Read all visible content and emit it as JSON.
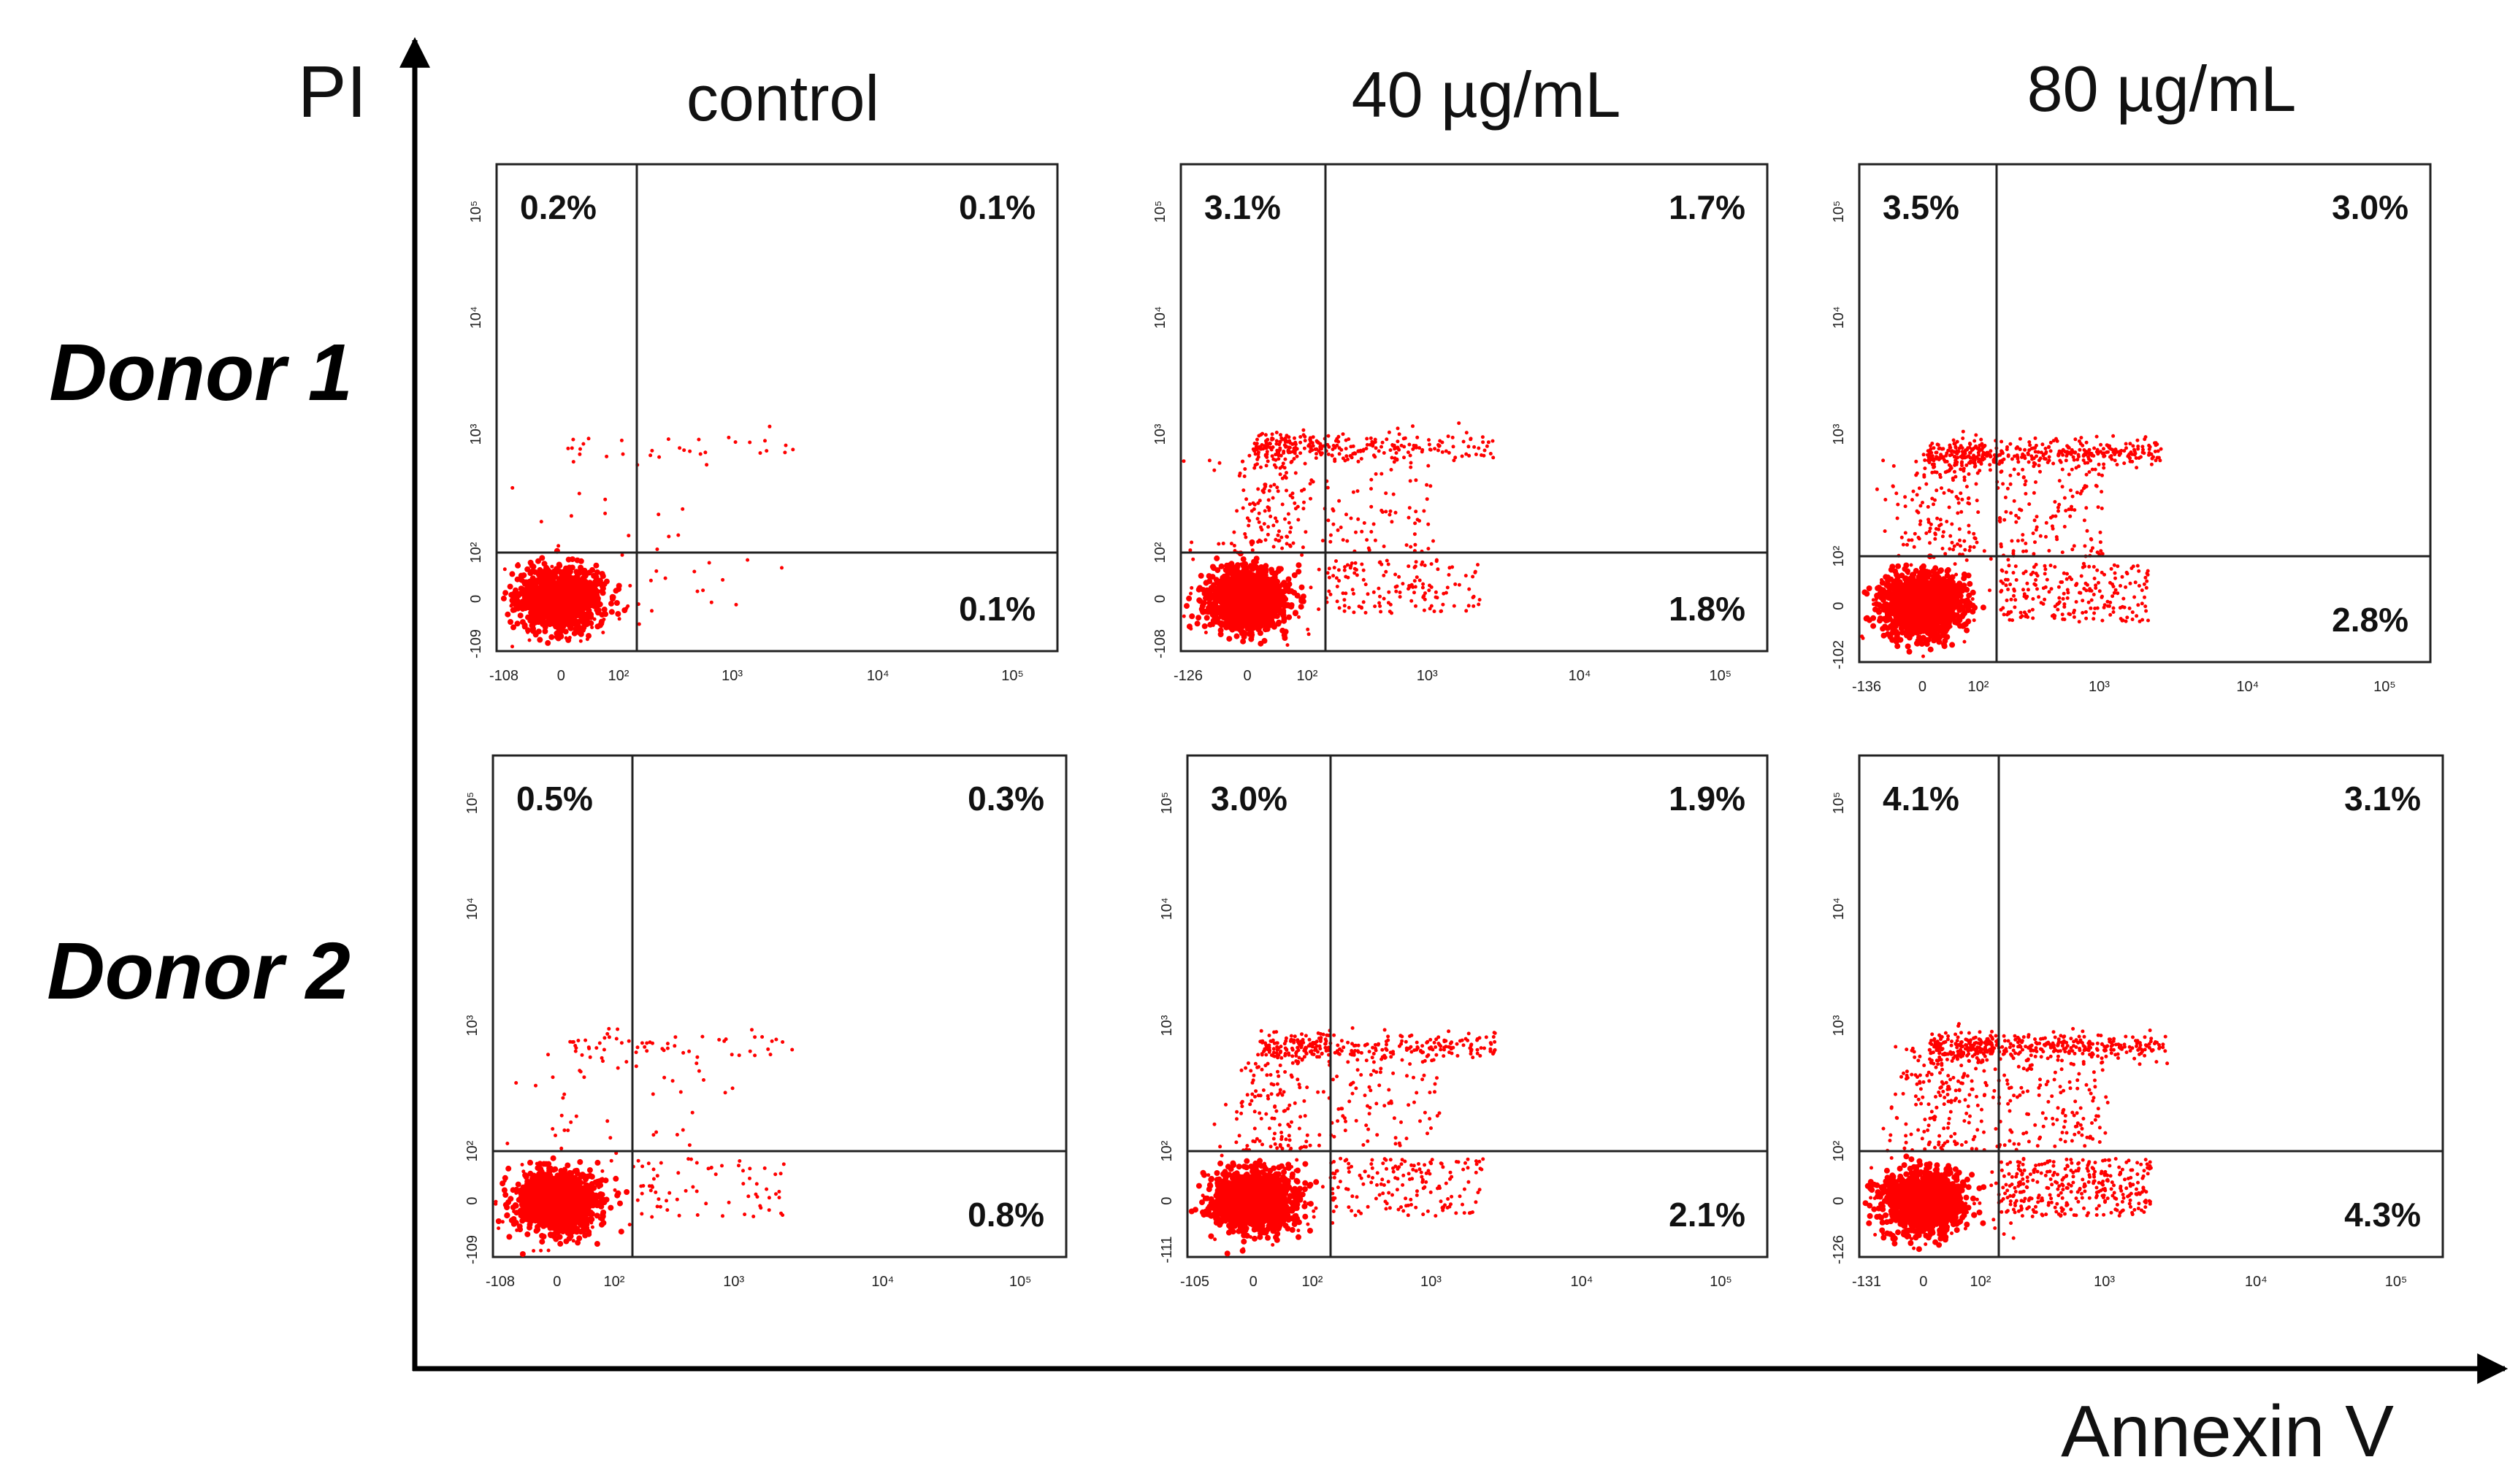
{
  "axes": {
    "y_label": "PI",
    "x_label": "Annexin V"
  },
  "columns": [
    "control",
    "40 µg/mL",
    "80 µg/mL"
  ],
  "rows": [
    "Donor 1",
    "Donor 2"
  ],
  "colors": {
    "dots": "#ff0000",
    "axis": "#000000",
    "frame": "#222222"
  },
  "chart_data": {
    "type": "scatter",
    "title": "",
    "xlabel": "Annexin V",
    "ylabel": "PI",
    "scale": "biexponential (log)",
    "tick_labels": {
      "zero": "0",
      "decades": [
        "10²",
        "10³",
        "10⁴",
        "10⁵"
      ]
    },
    "panels": [
      {
        "row": "Donor 1",
        "column": "control",
        "x_min": "-108",
        "y_min": "-109",
        "quadrants": {
          "upper_left": "0.2%",
          "upper_right": "0.1%",
          "lower_right": "0.1%"
        }
      },
      {
        "row": "Donor 1",
        "column": "40 µg/mL",
        "x_min": "-126",
        "y_min": "-108",
        "quadrants": {
          "upper_left": "3.1%",
          "upper_right": "1.7%",
          "lower_right": "1.8%"
        }
      },
      {
        "row": "Donor 1",
        "column": "80 µg/mL",
        "x_min": "-136",
        "y_min": "-102",
        "quadrants": {
          "upper_left": "3.5%",
          "upper_right": "3.0%",
          "lower_right": "2.8%"
        }
      },
      {
        "row": "Donor 2",
        "column": "control",
        "x_min": "-108",
        "y_min": "-109",
        "quadrants": {
          "upper_left": "0.5%",
          "upper_right": "0.3%",
          "lower_right": "0.8%"
        }
      },
      {
        "row": "Donor 2",
        "column": "40 µg/mL",
        "x_min": "-105",
        "y_min": "-111",
        "quadrants": {
          "upper_left": "3.0%",
          "upper_right": "1.9%",
          "lower_right": "2.1%"
        }
      },
      {
        "row": "Donor 2",
        "column": "80 µg/mL",
        "x_min": "-131",
        "y_min": "-126",
        "quadrants": {
          "upper_left": "4.1%",
          "upper_right": "3.1%",
          "lower_right": "4.3%"
        }
      }
    ]
  }
}
